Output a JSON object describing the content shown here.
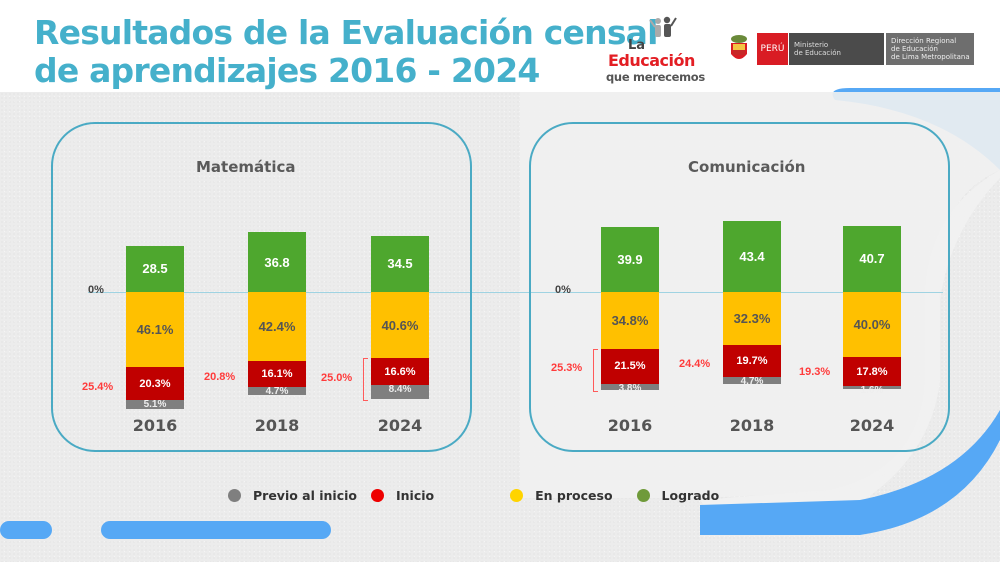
{
  "title_line1": "Resultados de la Evaluación censal",
  "title_line2": "de aprendizajes 2016 - 2024",
  "logo": {
    "la": "La",
    "educacion": "Educación",
    "que_merecemos": "que merecemos"
  },
  "ministry": {
    "country": "PERÚ",
    "ministry_line1": "Ministerio",
    "ministry_line2": "de Educación",
    "dre_line1": "Dirección Regional",
    "dre_line2": "de Educación",
    "dre_line3": "de Lima Metropolitana"
  },
  "colors": {
    "previo": "#7f7f7f",
    "inicio": "#c00000",
    "en_proceso": "#ffc000",
    "logrado": "#4ea72e",
    "accent": "#45b0cb",
    "highlight": "#ff3b3b"
  },
  "legend": [
    {
      "label": "Previo al inicio",
      "color": "#7f7f7f"
    },
    {
      "label": "Inicio",
      "color": "#ee0000"
    },
    {
      "label": "En proceso",
      "color": "#ffd400"
    },
    {
      "label": "Logrado",
      "color": "#6f9a3a"
    }
  ],
  "chart_data": [
    {
      "type": "bar",
      "stacked": "diverging",
      "title": "Matemática",
      "zero_label": "0%",
      "categories": [
        "2016",
        "2018",
        "2024"
      ],
      "series": [
        {
          "name": "Logrado",
          "values": [
            28.5,
            36.8,
            34.5
          ],
          "labels": [
            "28.5",
            "36.8",
            "34.5"
          ]
        },
        {
          "name": "En proceso",
          "values": [
            46.1,
            42.4,
            40.6
          ],
          "labels": [
            "46.1%",
            "42.4%",
            "40.6%"
          ]
        },
        {
          "name": "Inicio",
          "values": [
            20.3,
            16.1,
            16.6
          ],
          "labels": [
            "20.3%",
            "16.1%",
            "16.6%"
          ]
        },
        {
          "name": "Previo al inicio",
          "values": [
            5.1,
            4.7,
            8.4
          ],
          "labels": [
            "5.1%",
            "4.7%",
            "8.4%"
          ]
        }
      ],
      "annotations": [
        "25.4%",
        "20.8%",
        "25.0%"
      ]
    },
    {
      "type": "bar",
      "stacked": "diverging",
      "title": "Comunicación",
      "zero_label": "0%",
      "categories": [
        "2016",
        "2018",
        "2024"
      ],
      "series": [
        {
          "name": "Logrado",
          "values": [
            39.9,
            43.4,
            40.7
          ],
          "labels": [
            "39.9",
            "43.4",
            "40.7"
          ]
        },
        {
          "name": "En proceso",
          "values": [
            34.8,
            32.3,
            40.0
          ],
          "labels": [
            "34.8%",
            "32.3%",
            "40.0%"
          ]
        },
        {
          "name": "Inicio",
          "values": [
            21.5,
            19.7,
            17.8
          ],
          "labels": [
            "21.5%",
            "19.7%",
            "17.8%"
          ]
        },
        {
          "name": "Previo al inicio",
          "values": [
            3.8,
            4.7,
            1.6
          ],
          "labels": [
            "3.8%",
            "4.7%",
            "1.6%"
          ]
        }
      ],
      "annotations": [
        "25.3%",
        "24.4%",
        "19.3%"
      ]
    }
  ]
}
